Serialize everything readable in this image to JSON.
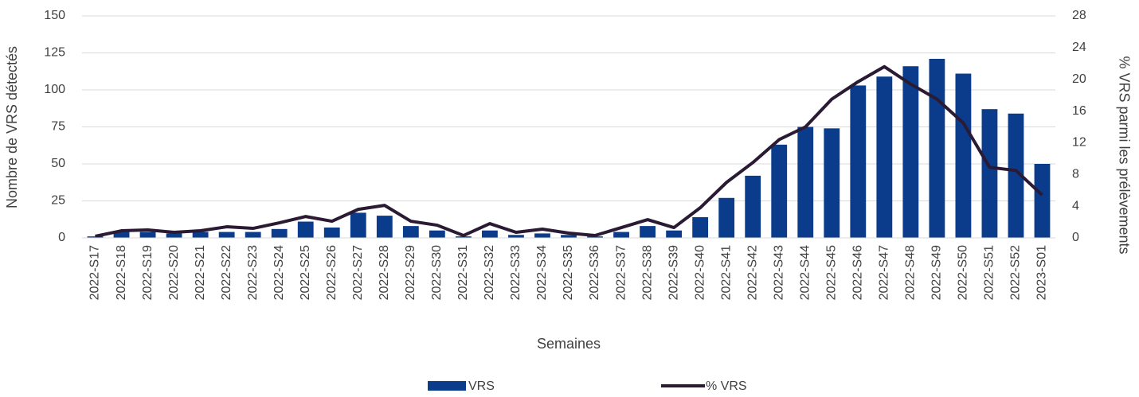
{
  "chart_data": {
    "type": "bar_line",
    "x_label": "Semaines",
    "y_label": "Nombre de VRS détectés",
    "y2_label": "% VRS parmi les prélèvements",
    "categories": [
      "2022-S17",
      "2022-S18",
      "2022-S19",
      "2022-S20",
      "2022-S21",
      "2022-S22",
      "2022-S23",
      "2022-S24",
      "2022-S25",
      "2022-S26",
      "2022-S27",
      "2022-S28",
      "2022-S29",
      "2022-S30",
      "2022-S31",
      "2022-S32",
      "2022-S33",
      "2022-S34",
      "2022-S35",
      "2022-S36",
      "2022-S37",
      "2022-S38",
      "2022-S39",
      "2022-S40",
      "2022-S41",
      "2022-S42",
      "2022-S43",
      "2022-S44",
      "2022-S45",
      "2022-S46",
      "2022-S47",
      "2022-S48",
      "2022-S49",
      "2022-S50",
      "2022-S51",
      "2022-S52",
      "2023-S01"
    ],
    "series": [
      {
        "name": "VRS",
        "type": "bar",
        "color": "#0b3c8c",
        "values": [
          1,
          4,
          4,
          3,
          4,
          4,
          4,
          6,
          11,
          7,
          17,
          15,
          8,
          5,
          1,
          5,
          2,
          3,
          2,
          1,
          4,
          8,
          5,
          14,
          27,
          42,
          63,
          75,
          74,
          103,
          109,
          116,
          121,
          111,
          87,
          84,
          50
        ]
      },
      {
        "name": "% VRS",
        "type": "line",
        "axis": "y2",
        "color": "#2a1a33",
        "values": [
          0.2,
          0.9,
          1.0,
          0.7,
          0.9,
          1.4,
          1.2,
          1.9,
          2.7,
          2.1,
          3.6,
          4.1,
          2.1,
          1.6,
          0.3,
          1.8,
          0.7,
          1.1,
          0.6,
          0.3,
          1.3,
          2.3,
          1.3,
          3.8,
          7.0,
          9.5,
          12.4,
          14.0,
          17.5,
          19.7,
          21.6,
          19.4,
          17.5,
          14.5,
          8.9,
          8.5,
          5.4
        ]
      }
    ],
    "ylim": [
      0,
      150
    ],
    "yticks": [
      0,
      25,
      50,
      75,
      100,
      125,
      150
    ],
    "y2lim": [
      0,
      28
    ],
    "y2ticks": [
      0,
      4,
      8,
      12,
      16,
      20,
      24,
      28
    ],
    "grid": true,
    "legend": "bottom"
  }
}
